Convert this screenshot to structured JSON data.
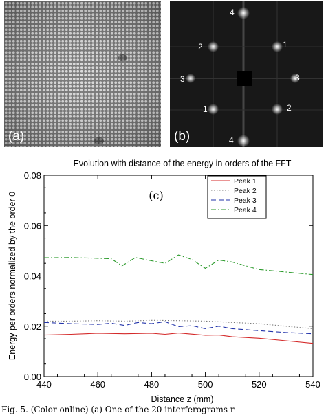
{
  "panels": {
    "a": {
      "tag": "(a)"
    },
    "b": {
      "tag": "(b)",
      "peak_labels": [
        "4",
        "2",
        "1",
        "3",
        "3",
        "1",
        "2",
        "4"
      ]
    }
  },
  "chart_data": {
    "type": "line",
    "title": "Evolution with distance of the energy in orders of the FFT",
    "xlabel": "Distance z (mm)",
    "ylabel": "Energy per orders normalized by the order 0",
    "xlim": [
      440,
      540
    ],
    "ylim": [
      0,
      0.08
    ],
    "xticks": [
      "440",
      "460",
      "480",
      "500",
      "520",
      "540"
    ],
    "yticks": [
      "0.00",
      "0.02",
      "0.04",
      "0.06",
      "0.08"
    ],
    "annotation": "(c)",
    "legend_position": "top-right",
    "series": [
      {
        "name": "Peak 1",
        "color": "#d42a2a",
        "dash": "",
        "x": [
          440,
          450,
          460,
          470,
          480,
          485,
          490,
          500,
          505,
          510,
          520,
          530,
          540
        ],
        "y": [
          0.0165,
          0.0168,
          0.0172,
          0.017,
          0.0172,
          0.0168,
          0.0173,
          0.0164,
          0.0165,
          0.0158,
          0.0152,
          0.0142,
          0.0132
        ]
      },
      {
        "name": "Peak 2",
        "color": "#7a7a7a",
        "dash": "1.5,2.5",
        "x": [
          440,
          450,
          460,
          470,
          480,
          490,
          500,
          510,
          520,
          530,
          540
        ],
        "y": [
          0.022,
          0.022,
          0.0222,
          0.022,
          0.0223,
          0.0222,
          0.022,
          0.0215,
          0.021,
          0.02,
          0.019
        ]
      },
      {
        "name": "Peak 3",
        "color": "#2233aa",
        "dash": "7,4",
        "x": [
          440,
          450,
          460,
          465,
          470,
          475,
          480,
          485,
          490,
          495,
          500,
          505,
          510,
          520,
          530,
          540
        ],
        "y": [
          0.0215,
          0.021,
          0.0207,
          0.0212,
          0.0203,
          0.0215,
          0.021,
          0.0218,
          0.0198,
          0.0202,
          0.019,
          0.02,
          0.019,
          0.0182,
          0.0175,
          0.017
        ]
      },
      {
        "name": "Peak 4",
        "color": "#2a9a2a",
        "dash": "7,3,1.5,3",
        "x": [
          440,
          450,
          460,
          465,
          469,
          474,
          480,
          485,
          490,
          495,
          500,
          505,
          510,
          520,
          530,
          540
        ],
        "y": [
          0.0472,
          0.0473,
          0.047,
          0.0468,
          0.044,
          0.0473,
          0.046,
          0.045,
          0.0483,
          0.0465,
          0.043,
          0.0463,
          0.0455,
          0.0425,
          0.0415,
          0.0405
        ]
      }
    ]
  },
  "caption": "Fig. 5.  (Color online) (a) One of the 20 interferograms r"
}
